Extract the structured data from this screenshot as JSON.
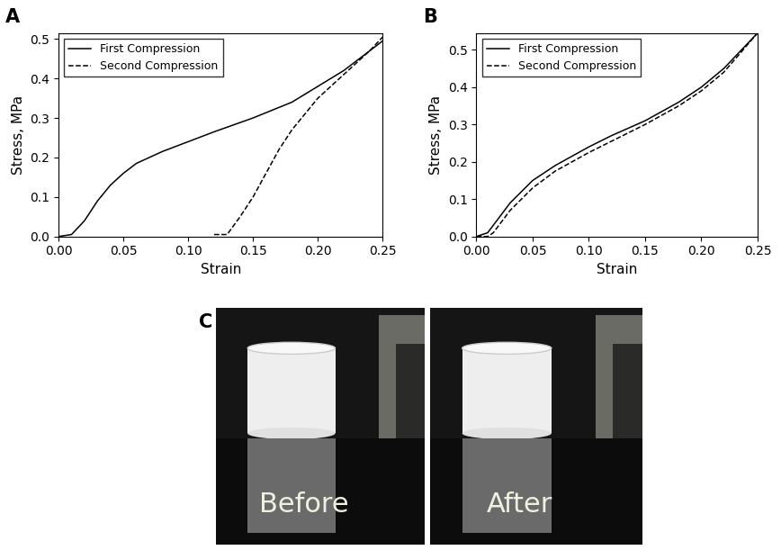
{
  "chart_data": [
    {
      "type": "line",
      "title": "A",
      "x_label": "Strain",
      "y_label": "Stress, MPa",
      "xlim": [
        0,
        0.25
      ],
      "xticks": [
        {
          "value": 0,
          "label": "0.00"
        },
        {
          "value": 0.05,
          "label": "0.05"
        },
        {
          "value": 0.1,
          "label": "0.10"
        },
        {
          "value": 0.15,
          "label": "0.15"
        },
        {
          "value": 0.2,
          "label": "0.20"
        },
        {
          "value": 0.25,
          "label": "0.25"
        }
      ],
      "ylim": [
        0,
        0.515
      ],
      "yticks": [
        0.0,
        0.1,
        0.2,
        0.3,
        0.4,
        0.5
      ],
      "legend": "upper left",
      "series": [
        {
          "name": "First Compression",
          "color": "#000000",
          "line_style": "solid",
          "x": [
            0,
            0.01,
            0.02,
            0.03,
            0.04,
            0.05,
            0.06,
            0.07,
            0.08,
            0.1,
            0.12,
            0.15,
            0.18,
            0.2,
            0.22,
            0.25
          ],
          "values": [
            0,
            0.005,
            0.04,
            0.09,
            0.13,
            0.16,
            0.185,
            0.2,
            0.215,
            0.24,
            0.265,
            0.3,
            0.34,
            0.38,
            0.42,
            0.495
          ]
        },
        {
          "name": "Second Compression",
          "color": "#000000",
          "line_style": "dashed",
          "x": [
            0.12,
            0.13,
            0.14,
            0.15,
            0.16,
            0.17,
            0.18,
            0.19,
            0.2,
            0.21,
            0.22,
            0.23,
            0.24,
            0.25
          ],
          "values": [
            0.005,
            0.005,
            0.05,
            0.1,
            0.16,
            0.22,
            0.27,
            0.31,
            0.35,
            0.38,
            0.41,
            0.44,
            0.47,
            0.505
          ]
        }
      ]
    },
    {
      "type": "line",
      "title": "B",
      "x_label": "Strain",
      "y_label": "Stress, MPa",
      "xlim": [
        0,
        0.25
      ],
      "xticks": [
        {
          "value": 0,
          "label": "0.00"
        },
        {
          "value": 0.05,
          "label": "0.05"
        },
        {
          "value": 0.1,
          "label": "0.10"
        },
        {
          "value": 0.15,
          "label": "0.15"
        },
        {
          "value": 0.2,
          "label": "0.20"
        },
        {
          "value": 0.25,
          "label": "0.25"
        }
      ],
      "ylim": [
        0,
        0.545
      ],
      "yticks": [
        0.0,
        0.1,
        0.2,
        0.3,
        0.4,
        0.5
      ],
      "legend": "upper left",
      "series": [
        {
          "name": "First Compression",
          "color": "#000000",
          "line_style": "solid",
          "x": [
            0,
            0.01,
            0.02,
            0.03,
            0.05,
            0.07,
            0.1,
            0.12,
            0.15,
            0.18,
            0.2,
            0.22,
            0.25
          ],
          "values": [
            0,
            0.01,
            0.05,
            0.09,
            0.15,
            0.19,
            0.24,
            0.27,
            0.31,
            0.36,
            0.4,
            0.45,
            0.545
          ]
        },
        {
          "name": "Second Compression",
          "color": "#000000",
          "line_style": "dashed",
          "x": [
            0,
            0.01,
            0.015,
            0.02,
            0.03,
            0.05,
            0.07,
            0.1,
            0.12,
            0.15,
            0.18,
            0.2,
            0.22,
            0.25
          ],
          "values": [
            0,
            0,
            0.01,
            0.03,
            0.07,
            0.13,
            0.175,
            0.225,
            0.255,
            0.3,
            0.35,
            0.39,
            0.44,
            0.545
          ]
        }
      ]
    }
  ],
  "photo": {
    "label": "C",
    "images": [
      {
        "caption": "Before"
      },
      {
        "caption": "After"
      }
    ]
  }
}
